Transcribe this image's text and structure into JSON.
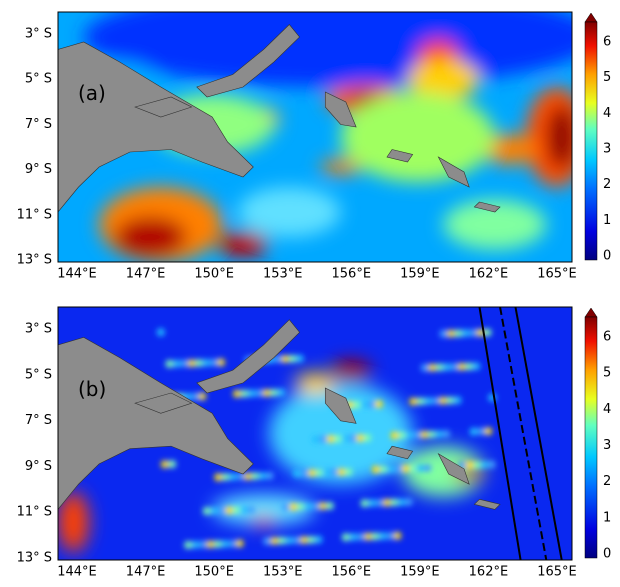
{
  "panels": [
    {
      "label": "(a)"
    },
    {
      "label": "(b)"
    }
  ],
  "lat_labels": [
    "3° S",
    "5° S",
    "7° S",
    "9° S",
    "11° S",
    "13° S"
  ],
  "lon_labels": [
    "144°E",
    "147°E",
    "150°E",
    "153°E",
    "156°E",
    "159°E",
    "162°E",
    "165°E"
  ],
  "colorbar_labels": [
    "0",
    "1",
    "2",
    "3",
    "4",
    "5",
    "6"
  ]
}
